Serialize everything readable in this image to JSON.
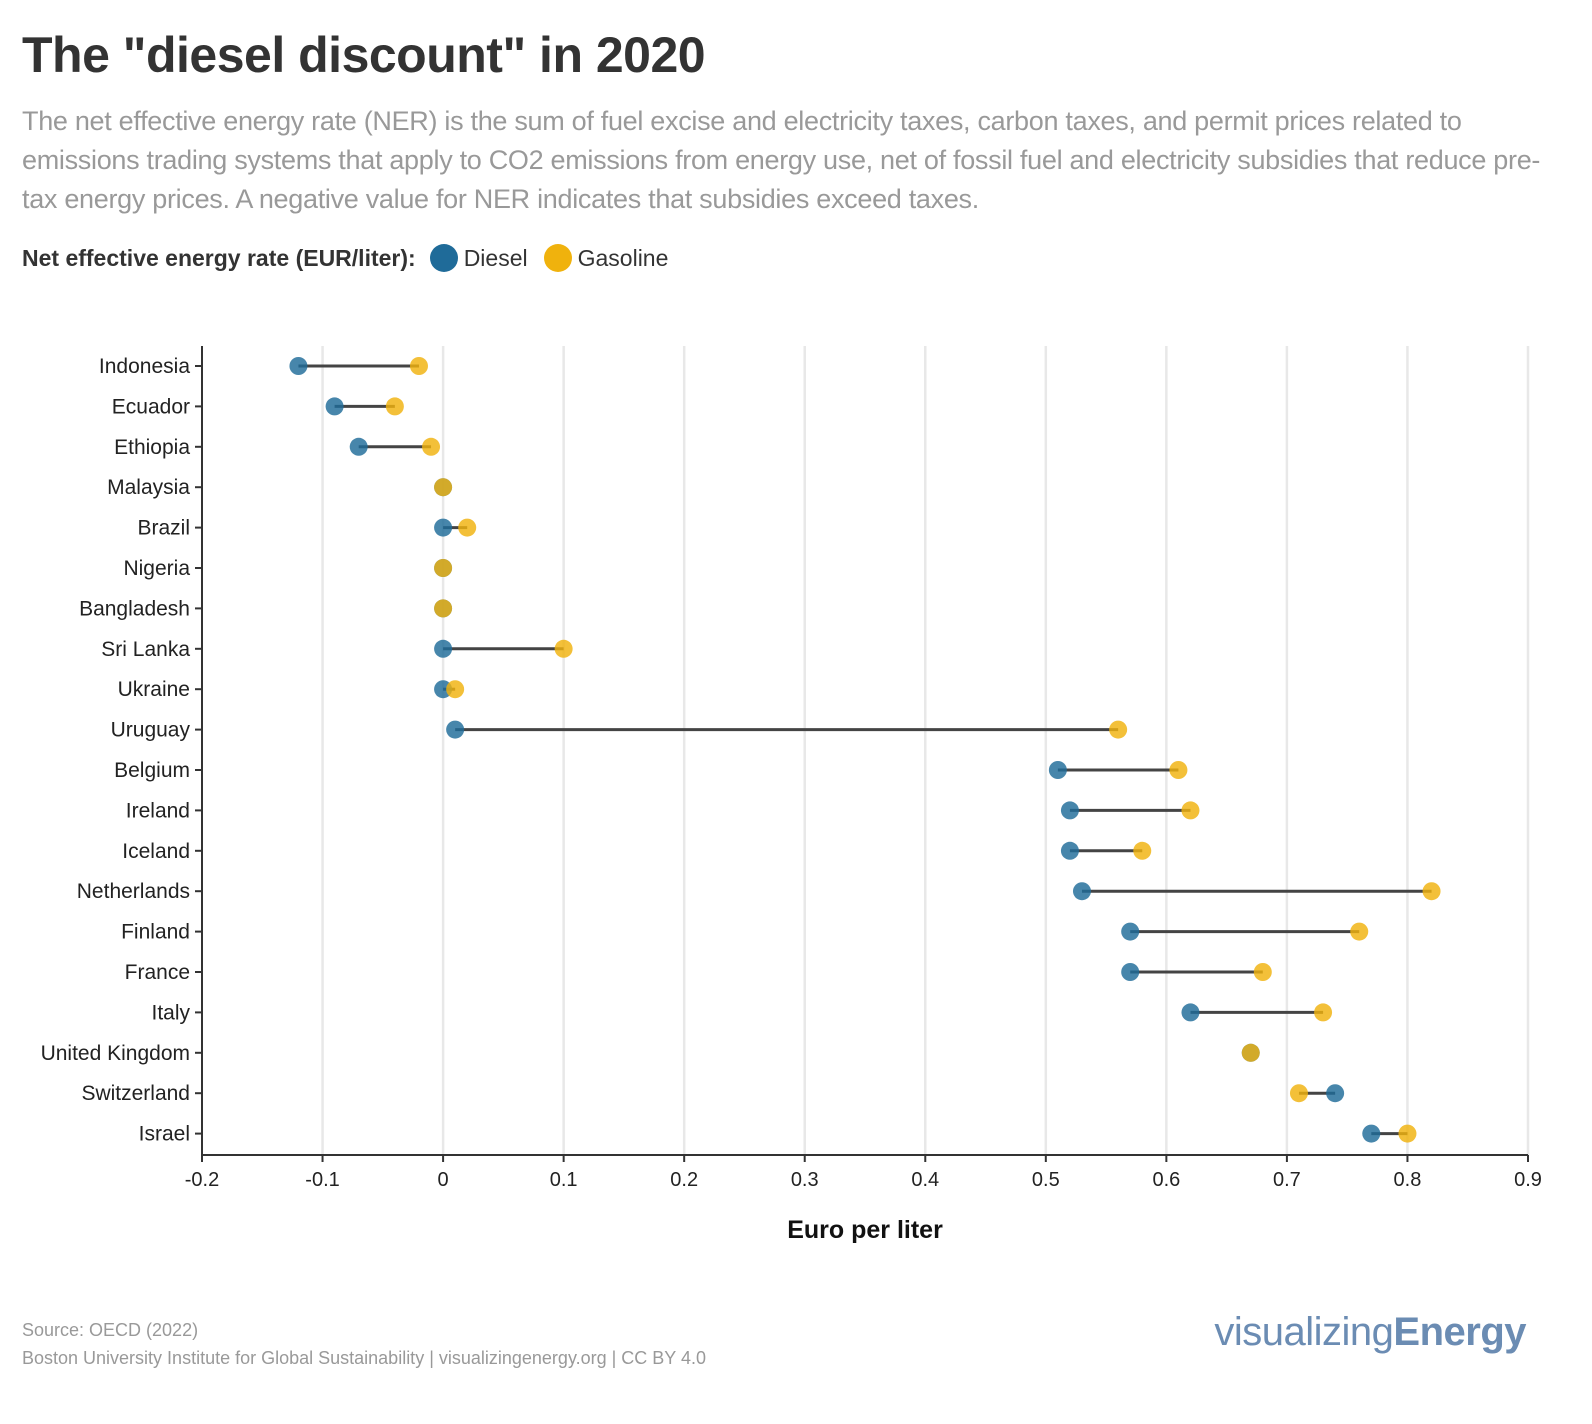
{
  "title": "The \"diesel discount\" in 2020",
  "subtitle": "The net effective energy rate (NER) is the sum of fuel excise and electricity taxes, carbon taxes, and permit prices related to emissions trading systems that apply to CO2 emissions from energy use, net of fossil fuel and electricity subsidies that reduce pre-tax energy prices. A negative value for NER indicates that subsidies exceed taxes.",
  "legend": {
    "label": "Net effective energy rate (EUR/liter):",
    "items": [
      {
        "name": "Diesel",
        "color": "#1f6b99"
      },
      {
        "name": "Gasoline",
        "color": "#f0b20d"
      }
    ]
  },
  "chart_data": {
    "type": "dumbbell",
    "title": "The \"diesel discount\" in 2020",
    "xlabel": "Euro per liter",
    "ylabel": "",
    "xlim": [
      -0.2,
      0.9
    ],
    "xticks": [
      -0.2,
      -0.1,
      0,
      0.1,
      0.2,
      0.3,
      0.4,
      0.5,
      0.6,
      0.7,
      0.8,
      0.9
    ],
    "xtick_labels": [
      "-0.2",
      "-0.1",
      "0",
      "0.1",
      "0.2",
      "0.3",
      "0.4",
      "0.5",
      "0.6",
      "0.7",
      "0.8",
      "0.9"
    ],
    "grid": "vertical",
    "categories": [
      "Indonesia",
      "Ecuador",
      "Ethiopia",
      "Malaysia",
      "Brazil",
      "Nigeria",
      "Bangladesh",
      "Sri Lanka",
      "Ukraine",
      "Uruguay",
      "Belgium",
      "Ireland",
      "Iceland",
      "Netherlands",
      "Finland",
      "France",
      "Italy",
      "United Kingdom",
      "Switzerland",
      "Israel"
    ],
    "series": [
      {
        "name": "Diesel",
        "color": "#1f6b99",
        "values": [
          -0.12,
          -0.09,
          -0.07,
          0,
          0,
          0,
          0,
          0,
          0,
          0.01,
          0.51,
          0.52,
          0.52,
          0.53,
          0.57,
          0.57,
          0.62,
          0.67,
          0.74,
          0.77
        ]
      },
      {
        "name": "Gasoline",
        "color": "#f0b20d",
        "values": [
          -0.02,
          -0.04,
          -0.01,
          0,
          0.02,
          0,
          0,
          0.1,
          0.01,
          0.56,
          0.61,
          0.62,
          0.58,
          0.82,
          0.76,
          0.68,
          0.73,
          0.67,
          0.71,
          0.8
        ]
      }
    ]
  },
  "footer": {
    "source": "Source: OECD (2022)",
    "credit": "Boston University Institute for Global Sustainability | visualizingenergy.org | CC BY 4.0",
    "logo_light": "visualizing",
    "logo_bold": "Energy"
  }
}
